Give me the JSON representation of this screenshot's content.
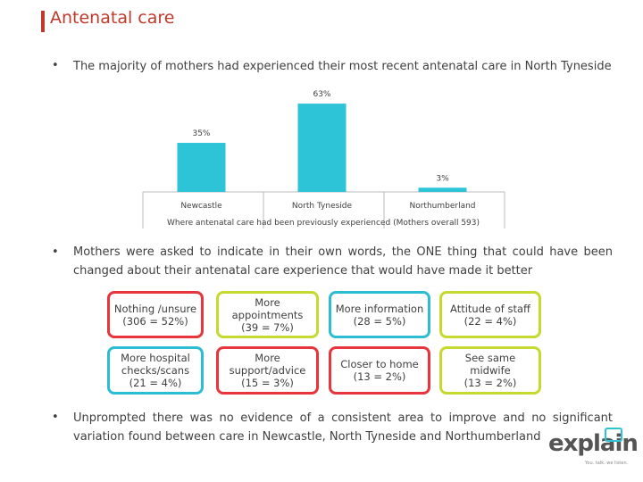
{
  "title": "Antenatal care",
  "bullets": [
    "The majority of mothers had experienced their most recent antenatal care in North Tyneside",
    "Mothers were asked to indicate in their own words, the ONE thing that could have been changed about their antenatal care experience that would have made it better",
    "Unprompted there was no evidence of a consistent area to improve and no significant variation found between care in Newcastle, North Tyneside and Northumberland"
  ],
  "chart_data": {
    "type": "bar",
    "x_label": "Where antenatal care had been previously experienced (Mothers overall 593)",
    "categories": [
      "Newcastle",
      "North Tyneside",
      "Northumberland"
    ],
    "values": [
      35,
      63,
      3
    ],
    "value_labels": [
      "35%",
      "63%",
      "3%"
    ],
    "color": "#2cc4d6"
  },
  "boxes": [
    {
      "label": "Nothing /unsure",
      "detail": "(306 = 52%)",
      "color": "#e8343c"
    },
    {
      "label": "More appointments",
      "detail": "(39 = 7%)",
      "color": "#c6d92f"
    },
    {
      "label": "More information",
      "detail": "(28 = 5%)",
      "color": "#2cbcd4"
    },
    {
      "label": "Attitude of staff",
      "detail": "(22 = 4%)",
      "color": "#c6d92f"
    },
    {
      "label": "More hospital checks/scans",
      "detail": "(21 = 4%)",
      "color": "#2cbcd4"
    },
    {
      "label": "More support/advice",
      "detail": "(15 = 3%)",
      "color": "#e8343c"
    },
    {
      "label": "Closer to home",
      "detail": "(13 = 2%)",
      "color": "#e8343c"
    },
    {
      "label": "See same midwife",
      "detail": "(13 = 2%)",
      "color": "#c6d92f"
    }
  ],
  "logo": {
    "name": "explain",
    "tagline": "You. talk. we listen."
  }
}
